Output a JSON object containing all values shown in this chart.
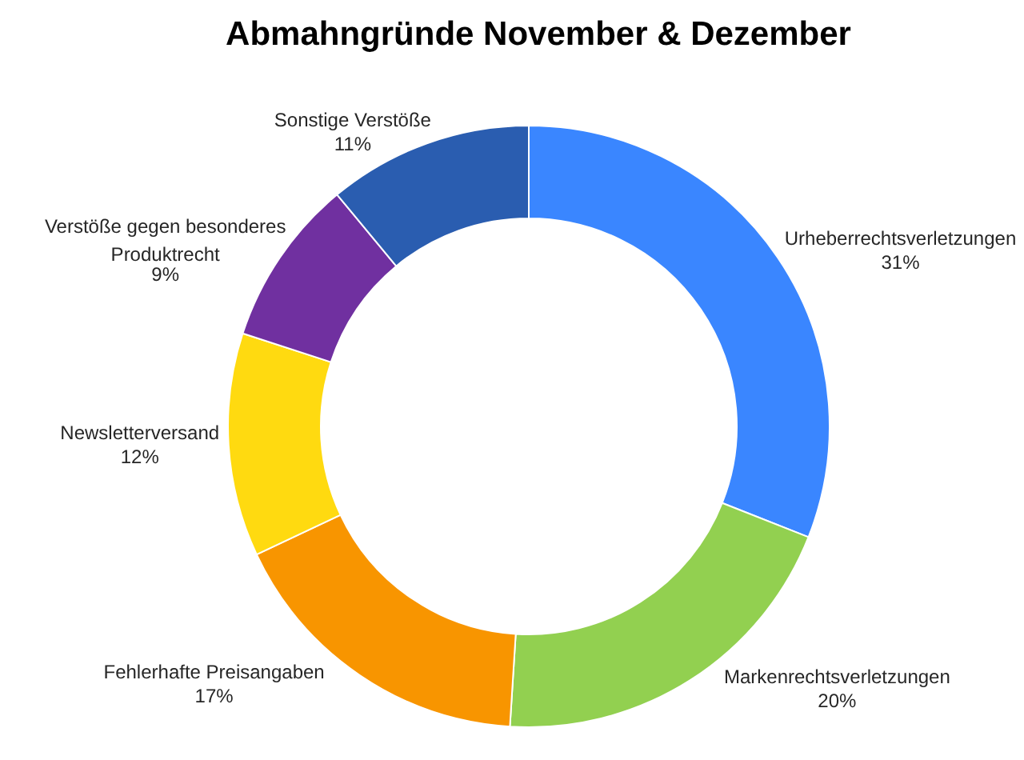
{
  "chart_data": {
    "type": "donut",
    "title": "Abmahngründe November & Dezember",
    "categories": [
      "Urheberrechtsverletzungen",
      "Markenrechtsverletzungen",
      "Fehlerhafte Preisangaben",
      "Newsletterversand",
      "Verstöße gegen besonderes Produktrecht",
      "Sonstige Verstöße"
    ],
    "values": [
      31,
      20,
      17,
      12,
      9,
      11
    ],
    "colors": [
      "#3a86ff",
      "#92d050",
      "#f89500",
      "#ffda10",
      "#7030a0",
      "#2a5db0"
    ],
    "value_labels": [
      "31%",
      "20%",
      "17%",
      "12%",
      "9%",
      "11%"
    ]
  }
}
